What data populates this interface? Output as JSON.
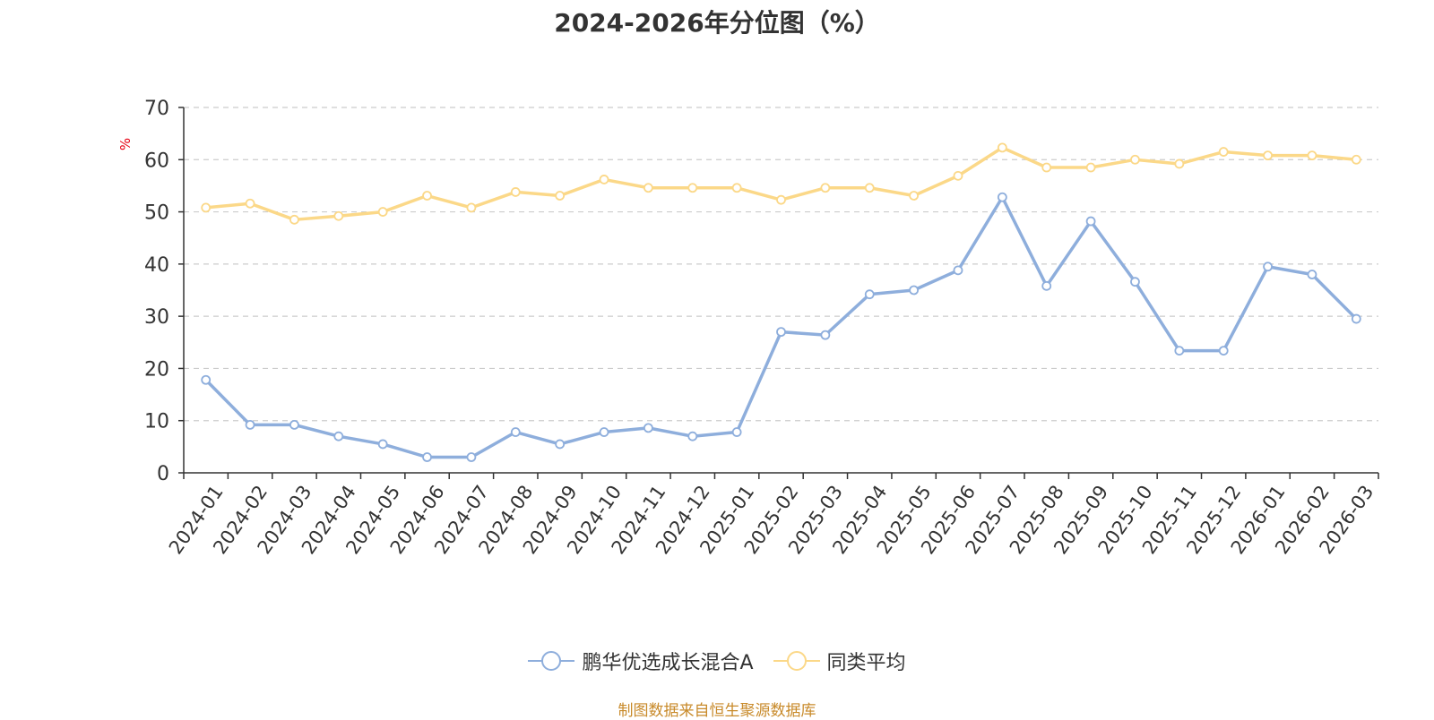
{
  "chart_data": {
    "type": "line",
    "title": "2024-2026年分位图（%）",
    "ylabel": "%",
    "xlabel": "",
    "ylim": [
      0,
      70
    ],
    "yticks": [
      0,
      10,
      20,
      30,
      40,
      50,
      60,
      70
    ],
    "grid": true,
    "legend_position": "bottom",
    "categories": [
      "2024-01",
      "2024-02",
      "2024-03",
      "2024-04",
      "2024-05",
      "2024-06",
      "2024-07",
      "2024-08",
      "2024-09",
      "2024-10",
      "2024-11",
      "2024-12",
      "2025-01",
      "2025-02",
      "2025-03",
      "2025-04",
      "2025-05",
      "2025-06",
      "2025-07",
      "2025-08",
      "2025-09",
      "2025-10",
      "2025-11",
      "2025-12",
      "2026-01",
      "2026-02",
      "2026-03"
    ],
    "series": [
      {
        "name": "鹏华优选成长混合A",
        "color": "#8eaedc",
        "values": [
          17.8,
          9.2,
          9.2,
          7.0,
          5.5,
          3.0,
          3.0,
          7.8,
          5.5,
          7.8,
          8.6,
          7.0,
          7.8,
          27.0,
          26.4,
          34.2,
          35.0,
          38.8,
          52.8,
          35.8,
          48.2,
          36.6,
          23.4,
          23.4,
          39.5,
          38.0,
          29.5
        ]
      },
      {
        "name": "同类平均",
        "color": "#fbd888",
        "values": [
          50.8,
          51.6,
          48.5,
          49.2,
          50.0,
          53.1,
          50.8,
          53.8,
          53.1,
          56.2,
          54.6,
          54.6,
          54.6,
          52.3,
          54.6,
          54.6,
          53.1,
          56.9,
          62.3,
          58.5,
          58.5,
          60.0,
          59.2,
          61.5,
          60.8,
          60.8,
          60.0
        ]
      }
    ]
  },
  "source_text": "制图数据来自恒生聚源数据库"
}
